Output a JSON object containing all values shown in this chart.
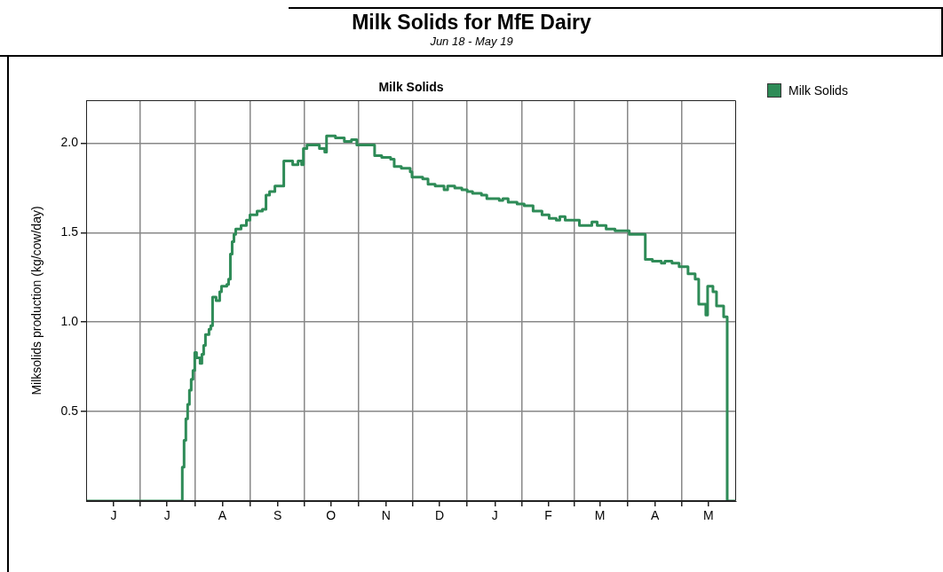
{
  "chart_data": {
    "type": "step",
    "title": "Milk Solids for MfE Dairy",
    "subtitle": "Jun 18 - May 19",
    "annotations": [
      "Milk Solids"
    ],
    "ylabel": "Milksolids production (kg/cow/day)",
    "categories": [
      null,
      null,
      null,
      null,
      null,
      null,
      null,
      null,
      null,
      null,
      null,
      null,
      null,
      null,
      null,
      "J",
      null,
      null,
      null,
      null,
      null,
      null,
      null,
      null,
      null,
      null,
      null,
      null,
      null,
      null,
      null,
      null,
      null,
      null,
      null,
      null,
      null,
      null,
      null,
      null,
      null,
      null,
      null,
      null,
      null,
      "J",
      null,
      null,
      null,
      null,
      null,
      null,
      null,
      null,
      null,
      null,
      null,
      null,
      null,
      null,
      null,
      null,
      null,
      null,
      null,
      null,
      null,
      null,
      null,
      null,
      null,
      null,
      null,
      null,
      null,
      null,
      "A",
      null,
      null,
      null,
      null,
      null,
      null,
      null,
      null,
      null,
      null,
      null,
      null,
      null,
      null,
      null,
      null,
      null,
      null,
      null,
      null,
      null,
      null,
      null,
      null,
      null,
      null,
      null,
      null,
      null,
      null,
      "S",
      null,
      null,
      null,
      null,
      null,
      null,
      null,
      null,
      null,
      null,
      null,
      null,
      null,
      null,
      null,
      null,
      null,
      null,
      null,
      null,
      null,
      null,
      null,
      null,
      null,
      null,
      null,
      null,
      null,
      "O",
      null,
      null,
      null,
      null,
      null,
      null,
      null,
      null,
      null,
      null,
      null,
      null,
      null,
      null,
      null,
      null,
      null,
      null,
      null,
      null,
      null,
      null,
      null,
      null,
      null,
      null,
      null,
      null,
      null,
      null,
      "N",
      null,
      null,
      null,
      null,
      null,
      null,
      null,
      null,
      null,
      null,
      null,
      null,
      null,
      null,
      null,
      null,
      null,
      null,
      null,
      null,
      null,
      null,
      null,
      null,
      null,
      null,
      null,
      null,
      null,
      "D",
      null,
      null,
      null,
      null,
      null,
      null,
      null,
      null,
      null,
      null,
      null,
      null,
      null,
      null,
      null,
      null,
      null,
      null,
      null,
      null,
      null,
      null,
      null,
      null,
      null,
      null,
      null,
      null,
      null,
      null,
      "J",
      null,
      null,
      null,
      null,
      null,
      null,
      null,
      null,
      null,
      null,
      null,
      null,
      null,
      null,
      null,
      null,
      null,
      null,
      null,
      null,
      null,
      null,
      null,
      null,
      null,
      null,
      null,
      null,
      null,
      "F",
      null,
      null,
      null,
      null,
      null,
      null,
      null,
      null,
      null,
      null,
      null,
      null,
      null,
      null,
      null,
      null,
      null,
      null,
      null,
      null,
      null,
      null,
      null,
      null,
      null,
      null,
      null,
      null,
      "M",
      null,
      null,
      null,
      null,
      null,
      null,
      null,
      null,
      null,
      null,
      null,
      null,
      null,
      null,
      null,
      null,
      null,
      null,
      null,
      null,
      null,
      null,
      null,
      null,
      null,
      null,
      null,
      null,
      null,
      null,
      "A",
      null,
      null,
      null,
      null,
      null,
      null,
      null,
      null,
      null,
      null,
      null,
      null,
      null,
      null,
      null,
      null,
      null,
      null,
      null,
      null,
      null,
      null,
      null,
      null,
      null,
      null,
      null,
      null,
      null,
      "M",
      null,
      null,
      null,
      null,
      null,
      null,
      null,
      null,
      null,
      null,
      null,
      null,
      null,
      null,
      null
    ],
    "series": [
      {
        "name": "Milk Solids",
        "color": "#2e8b57",
        "values": [
          0,
          0,
          0,
          0,
          0,
          0,
          0,
          0,
          0,
          0,
          0,
          0,
          0,
          0,
          0,
          0,
          0,
          0,
          0,
          0,
          0,
          0,
          0,
          0,
          0,
          0,
          0,
          0,
          0,
          0,
          0,
          0,
          0,
          0,
          0,
          0,
          0,
          0,
          0,
          0,
          0,
          0,
          0,
          0,
          0,
          0,
          0,
          0,
          0,
          0,
          0,
          0,
          0,
          0,
          0.19,
          0.34,
          0.46,
          0.54,
          0.62,
          0.68,
          0.73,
          0.83,
          0.8,
          0.8,
          0.77,
          0.82,
          0.87,
          0.93,
          0.93,
          0.96,
          0.98,
          1.14,
          1.14,
          1.12,
          1.12,
          1.17,
          1.2,
          1.2,
          1.2,
          1.21,
          1.24,
          1.38,
          1.45,
          1.49,
          1.52,
          1.52,
          1.52,
          1.54,
          1.54,
          1.54,
          1.57,
          1.57,
          1.6,
          1.6,
          1.6,
          1.6,
          1.62,
          1.62,
          1.62,
          1.63,
          1.63,
          1.71,
          1.71,
          1.73,
          1.73,
          1.73,
          1.76,
          1.76,
          1.76,
          1.76,
          1.76,
          1.9,
          1.9,
          1.9,
          1.9,
          1.9,
          1.88,
          1.88,
          1.88,
          1.9,
          1.9,
          1.88,
          1.97,
          1.97,
          1.99,
          1.99,
          1.99,
          1.99,
          1.99,
          1.99,
          1.99,
          1.97,
          1.97,
          1.97,
          1.95,
          2.04,
          2.04,
          2.04,
          2.04,
          2.04,
          2.03,
          2.03,
          2.03,
          2.03,
          2.03,
          2.01,
          2.01,
          2.01,
          2.01,
          2.02,
          2.02,
          2.02,
          1.99,
          1.99,
          1.99,
          1.99,
          1.99,
          1.99,
          1.99,
          1.99,
          1.99,
          1.99,
          1.93,
          1.93,
          1.93,
          1.93,
          1.92,
          1.92,
          1.92,
          1.92,
          1.92,
          1.91,
          1.91,
          1.87,
          1.87,
          1.87,
          1.87,
          1.86,
          1.86,
          1.86,
          1.86,
          1.86,
          1.84,
          1.81,
          1.81,
          1.81,
          1.81,
          1.81,
          1.81,
          1.8,
          1.8,
          1.8,
          1.77,
          1.77,
          1.77,
          1.77,
          1.76,
          1.76,
          1.76,
          1.76,
          1.76,
          1.74,
          1.74,
          1.76,
          1.76,
          1.76,
          1.76,
          1.75,
          1.75,
          1.75,
          1.75,
          1.74,
          1.74,
          1.74,
          1.73,
          1.73,
          1.73,
          1.72,
          1.72,
          1.72,
          1.72,
          1.72,
          1.71,
          1.71,
          1.71,
          1.69,
          1.69,
          1.69,
          1.69,
          1.69,
          1.69,
          1.69,
          1.68,
          1.68,
          1.69,
          1.69,
          1.69,
          1.67,
          1.67,
          1.67,
          1.67,
          1.67,
          1.66,
          1.66,
          1.66,
          1.66,
          1.65,
          1.65,
          1.65,
          1.65,
          1.65,
          1.62,
          1.62,
          1.62,
          1.62,
          1.62,
          1.6,
          1.6,
          1.6,
          1.6,
          1.58,
          1.58,
          1.58,
          1.58,
          1.57,
          1.57,
          1.59,
          1.59,
          1.59,
          1.57,
          1.57,
          1.57,
          1.57,
          1.57,
          1.57,
          1.57,
          1.57,
          1.54,
          1.54,
          1.54,
          1.54,
          1.54,
          1.54,
          1.54,
          1.56,
          1.56,
          1.56,
          1.54,
          1.54,
          1.54,
          1.54,
          1.54,
          1.52,
          1.52,
          1.52,
          1.52,
          1.52,
          1.51,
          1.51,
          1.51,
          1.51,
          1.51,
          1.51,
          1.51,
          1.51,
          1.49,
          1.49,
          1.49,
          1.49,
          1.49,
          1.49,
          1.49,
          1.49,
          1.49,
          1.35,
          1.35,
          1.35,
          1.35,
          1.34,
          1.34,
          1.34,
          1.34,
          1.34,
          1.33,
          1.33,
          1.34,
          1.34,
          1.34,
          1.34,
          1.33,
          1.33,
          1.33,
          1.33,
          1.31,
          1.31,
          1.31,
          1.31,
          1.31,
          1.27,
          1.27,
          1.27,
          1.27,
          1.24,
          1.24,
          1.1,
          1.1,
          1.1,
          1.1,
          1.04,
          1.2,
          1.2,
          1.2,
          1.17,
          1.17,
          1.09,
          1.09,
          1.09,
          1.09,
          1.03,
          1.03,
          0,
          0,
          0,
          0,
          0
        ]
      }
    ],
    "ylim": [
      0,
      2.24
    ],
    "yticks": [
      {
        "value": 0.5,
        "label": "0.5"
      },
      {
        "value": 1,
        "label": "1.0"
      },
      {
        "value": 1.5,
        "label": "1.5"
      },
      {
        "value": 2,
        "label": "2.0"
      }
    ],
    "grid": true,
    "legend": "top right",
    "marker": "none",
    "line_style": "solid"
  }
}
